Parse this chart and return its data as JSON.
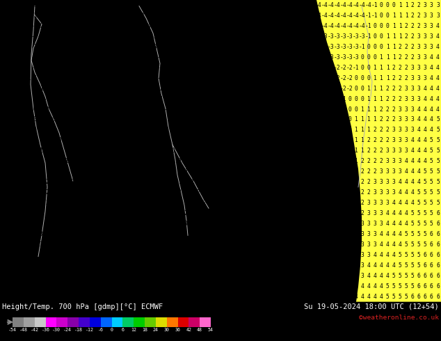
{
  "title_left": "Height/Temp. 700 hPa [gdmp][°C] ECMWF",
  "title_right": "Su 19-05-2024 18:00 UTC (12+54)",
  "credit": "©weatheronline.co.uk",
  "colorbar_ticks": [
    -54,
    -48,
    -42,
    -36,
    -30,
    -24,
    -18,
    -12,
    -6,
    0,
    6,
    12,
    18,
    24,
    30,
    36,
    42,
    48,
    54
  ],
  "colorbar_colors": [
    "#808080",
    "#a0a0a0",
    "#c8c8c8",
    "#ff00ff",
    "#cc00cc",
    "#8800aa",
    "#4400cc",
    "#0000dd",
    "#0066ff",
    "#00ccff",
    "#00cc66",
    "#00cc00",
    "#66cc00",
    "#dddd00",
    "#ff7700",
    "#dd0000",
    "#cc0066",
    "#ff66cc"
  ],
  "map_green": "#00ee00",
  "map_yellow": "#ffff44",
  "fig_bg": "#000000",
  "border_color": "#b0b0b0",
  "text_white": "#ffffff",
  "text_red": "#dd2222",
  "num_rows": 29,
  "num_cols": 70
}
